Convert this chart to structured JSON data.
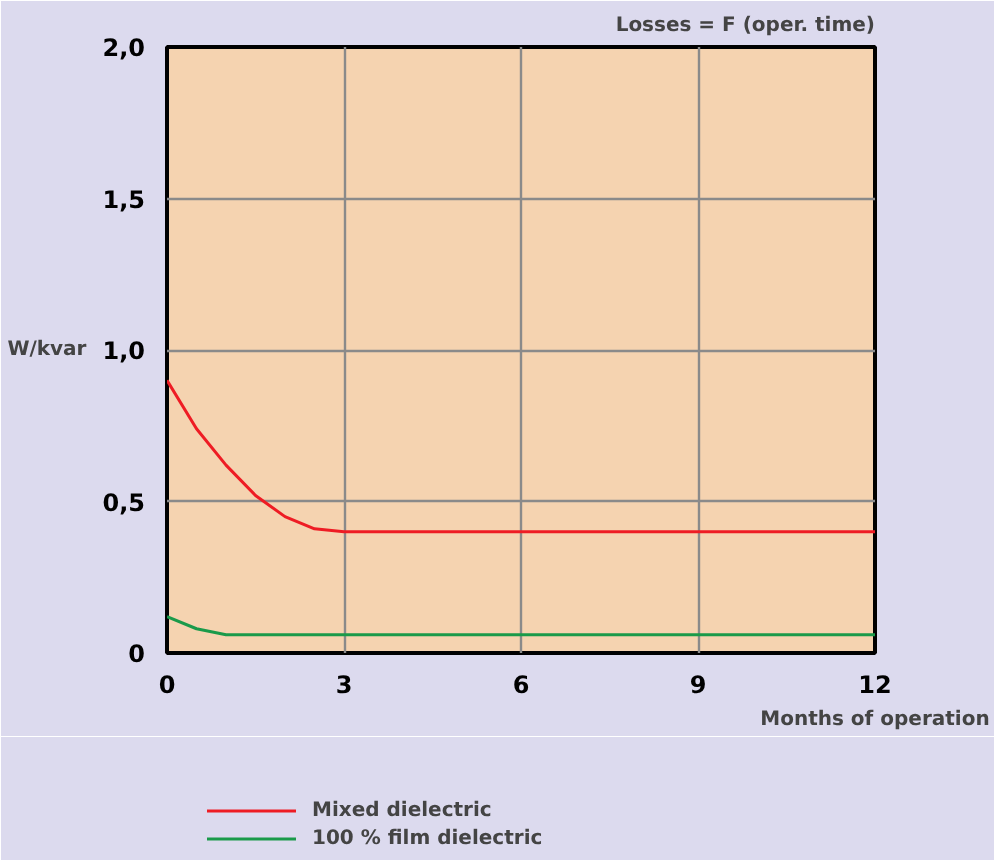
{
  "chart_data": {
    "type": "line",
    "title": "Losses = F (oper. time)",
    "xlabel": "Months of operation",
    "ylabel": "W/kvar",
    "xlim": [
      0,
      12
    ],
    "ylim": [
      0,
      2
    ],
    "xticks": [
      0,
      3,
      6,
      9,
      12
    ],
    "yticks": [
      0,
      {
        "value": 0.5,
        "label": "0,5"
      },
      {
        "value": 1,
        "label": "1,0"
      },
      {
        "value": 1.5,
        "label": "1,5"
      },
      {
        "value": 2,
        "label": "2,0"
      }
    ],
    "grid": true,
    "legend": "bottom left",
    "line_style": "solid",
    "series": [
      {
        "name": "Mixed dielectric",
        "color": "#ee1c24",
        "x": [
          0,
          0.5,
          1,
          1.5,
          2,
          2.5,
          3,
          6,
          9,
          12
        ],
        "values": [
          0.9,
          0.74,
          0.62,
          0.52,
          0.45,
          0.41,
          0.4,
          0.4,
          0.4,
          0.4
        ]
      },
      {
        "name": "100 % film dielectric",
        "color": "#1a9a4a",
        "x": [
          0,
          0.5,
          1,
          3,
          6,
          9,
          12
        ],
        "values": [
          0.12,
          0.08,
          0.06,
          0.06,
          0.06,
          0.06,
          0.06
        ]
      }
    ]
  }
}
